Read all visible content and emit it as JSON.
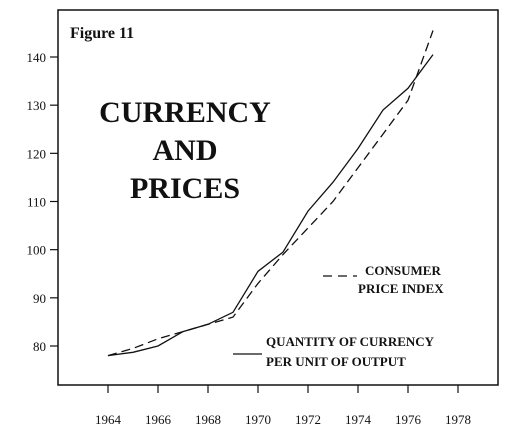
{
  "chart_data": {
    "type": "line",
    "figure_label": "Figure 11",
    "title_lines": [
      "CURRENCY",
      "AND",
      "PRICES"
    ],
    "x": [
      1964,
      1965,
      1966,
      1967,
      1968,
      1969,
      1970,
      1971,
      1972,
      1973,
      1974,
      1975,
      1976,
      1977
    ],
    "x_ticks": [
      "1964",
      "1966",
      "1968",
      "1970",
      "1972",
      "1974",
      "1976",
      "1978"
    ],
    "x_tick_values": [
      1964,
      1966,
      1968,
      1970,
      1972,
      1974,
      1976,
      1978
    ],
    "y_ticks": [
      "80",
      "90",
      "100",
      "110",
      "120",
      "130",
      "140"
    ],
    "y_tick_values": [
      80,
      90,
      100,
      110,
      120,
      130,
      140
    ],
    "xlim": [
      1962,
      1980
    ],
    "ylim": [
      72,
      150
    ],
    "series": [
      {
        "name": "CONSUMER PRICE INDEX",
        "name_lines": [
          "CONSUMER",
          "PRICE INDEX"
        ],
        "style": "dashed",
        "values": [
          78,
          79.5,
          81.5,
          83,
          84.5,
          86,
          93,
          99,
          104.5,
          110,
          117,
          124,
          131,
          145.5
        ]
      },
      {
        "name": "QUANTITY OF CURRENCY PER UNIT OF OUTPUT",
        "name_lines": [
          "QUANTITY OF CURRENCY",
          "PER UNIT OF OUTPUT"
        ],
        "style": "solid",
        "values": [
          78,
          78.7,
          80,
          83,
          84.5,
          87,
          95.5,
          99.5,
          108,
          114,
          121,
          129,
          133.5,
          140.5
        ]
      }
    ],
    "grid": false,
    "legend": "right"
  }
}
